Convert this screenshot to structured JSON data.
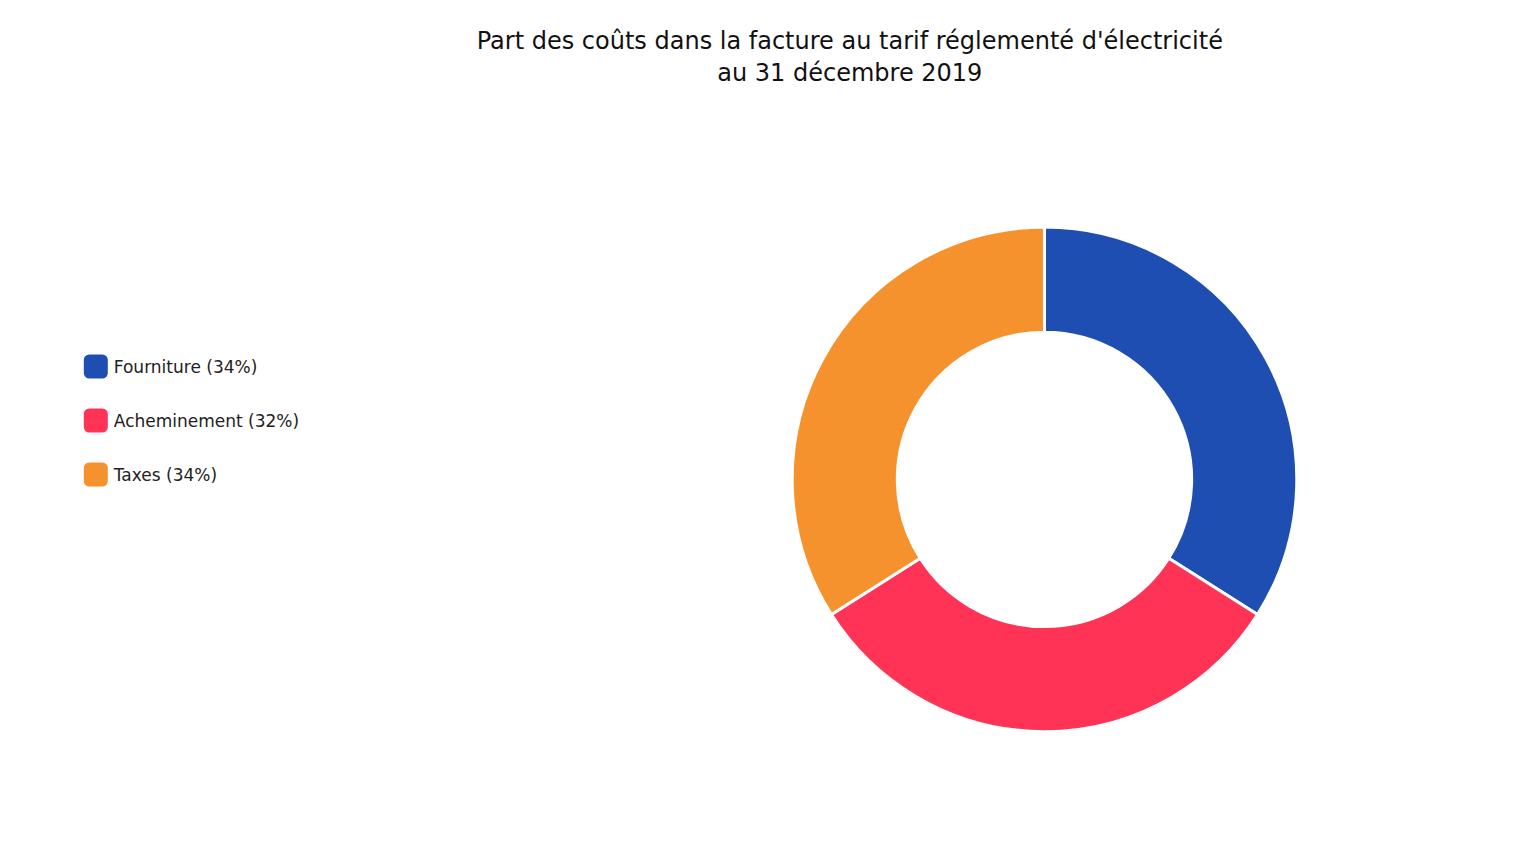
{
  "chart_data": {
    "type": "donut",
    "title": "Part des coûts dans la facture au tarif réglementé d'électricité\nau 31 décembre 2019",
    "categories": [
      "Fourniture (34%)",
      "Acheminement (32%)",
      "Taxes (34%)"
    ],
    "values": [
      34,
      32,
      34
    ],
    "colors": [
      "#1f4eb3",
      "#ff3355",
      "#f5922e"
    ],
    "legend": "left"
  }
}
